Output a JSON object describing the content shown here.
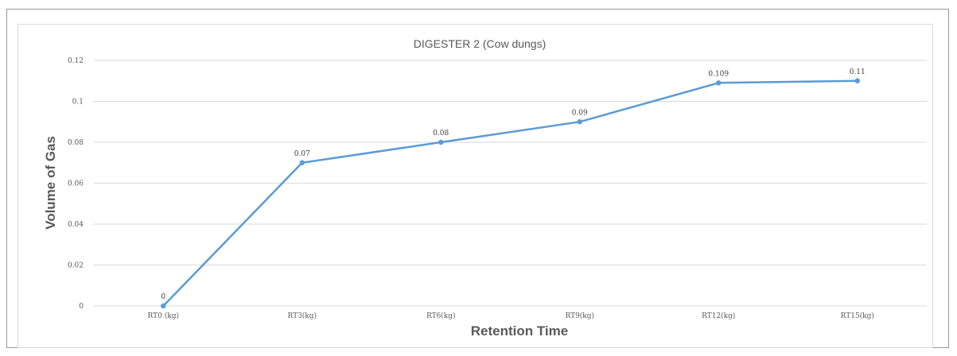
{
  "chart_data": {
    "type": "line",
    "title": "DIGESTER 2 (Cow dungs)",
    "xlabel": "Retention Time",
    "ylabel": "Volume of Gas",
    "categories": [
      "RT0 (kg)",
      "RT3(kg)",
      "RT6(kg)",
      "RT9(kg)",
      "RT12(kg)",
      "RT15(kg)"
    ],
    "series": [
      {
        "values": [
          0,
          0.07,
          0.08,
          0.09,
          0.109,
          0.11
        ]
      }
    ],
    "data_labels": [
      "0",
      "0.07",
      "0.08",
      "0.09",
      "0.109",
      "0.11"
    ],
    "ylim": [
      0,
      0.12
    ],
    "yticks": [
      0,
      0.02,
      0.04,
      0.06,
      0.08,
      0.1,
      0.12
    ],
    "ytick_labels": [
      "0",
      "0.02",
      "0.04",
      "0.06",
      "0.08",
      "0.1",
      "0.12"
    ],
    "grid": true,
    "legend": "none",
    "colors": {
      "line": "#5b9bd5",
      "grid": "#d9d9d9",
      "text": "#595959"
    }
  }
}
